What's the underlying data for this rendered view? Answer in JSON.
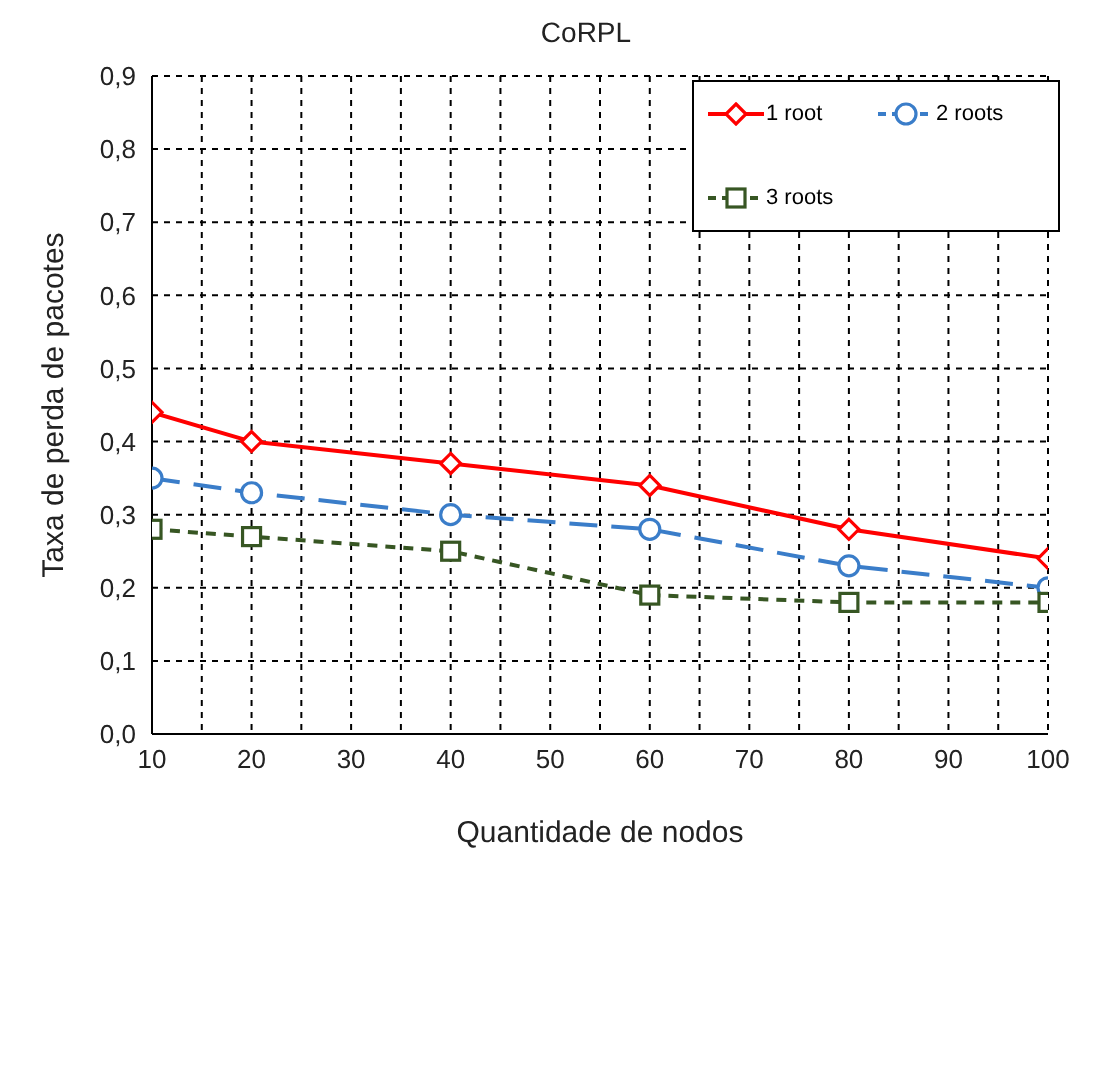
{
  "chart_data": {
    "type": "line",
    "title": "CoRPL",
    "xlabel": "Quantidade de nodos",
    "ylabel": "Taxa de perda de pacotes",
    "x": [
      10,
      20,
      40,
      60,
      80,
      100
    ],
    "series": [
      {
        "name": "1 root",
        "color": "#ff0000",
        "marker": "diamond",
        "line_style": "solid",
        "values": [
          0.44,
          0.4,
          0.37,
          0.34,
          0.28,
          0.24
        ]
      },
      {
        "name": "2 roots",
        "color": "#3a7dc9",
        "marker": "circle",
        "line_style": "dashed",
        "values": [
          0.35,
          0.33,
          0.3,
          0.28,
          0.23,
          0.2
        ]
      },
      {
        "name": "3 roots",
        "color": "#375623",
        "marker": "square",
        "line_style": "dotted",
        "values": [
          0.28,
          0.27,
          0.25,
          0.19,
          0.18,
          0.18
        ]
      }
    ],
    "xlim": [
      10,
      100
    ],
    "xticks": [
      10,
      {
        "value": 15,
        "label": null
      },
      20,
      {
        "value": 25,
        "label": null
      },
      30,
      {
        "value": 35,
        "label": null
      },
      40,
      {
        "value": 45,
        "label": null
      },
      50,
      {
        "value": 55,
        "label": null
      },
      60,
      {
        "value": 65,
        "label": null
      },
      70,
      {
        "value": 75,
        "label": null
      },
      80,
      {
        "value": 85,
        "label": null
      },
      90,
      {
        "value": 95,
        "label": null
      },
      100
    ],
    "ylim": [
      0,
      0.9
    ],
    "yticks": [
      {
        "value": 0,
        "label": "0,0"
      },
      {
        "value": 0.1,
        "label": "0,1"
      },
      {
        "value": 0.2,
        "label": "0,2"
      },
      {
        "value": 0.3,
        "label": "0,3"
      },
      {
        "value": 0.4,
        "label": "0,4"
      },
      {
        "value": 0.5,
        "label": "0,5"
      },
      {
        "value": 0.6,
        "label": "0,6"
      },
      {
        "value": 0.7,
        "label": "0,7"
      },
      {
        "value": 0.8,
        "label": "0,8"
      },
      {
        "value": 0.9,
        "label": "0,9"
      }
    ],
    "grid": true,
    "legend": "top right"
  }
}
